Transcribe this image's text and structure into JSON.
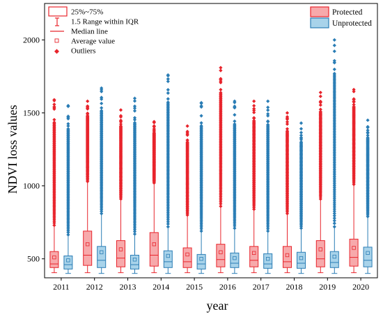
{
  "chart_data": {
    "type": "box",
    "title": "",
    "xlabel": "year",
    "ylabel": "NDVI loss values",
    "ylim": [
      370,
      2250
    ],
    "yticks": [
      500,
      1000,
      1500,
      2000
    ],
    "categories": [
      "2011",
      "2012",
      "2013",
      "2014",
      "2015",
      "2016",
      "2017",
      "2018",
      "2019",
      "2020"
    ],
    "colors": {
      "protected_edge": "#e8242c",
      "protected_fill": "#f7a9ab",
      "unprotected_edge": "#2a7db5",
      "unprotected_fill": "#a8d3ea"
    },
    "box_legend": {
      "iqr": "25%~75%",
      "whisker": "1.5 Range within IQR",
      "median": "Median line",
      "mean": "Average value",
      "outliers": "Outliers"
    },
    "series": [
      {
        "name": "Protected",
        "q1": [
          440,
          455,
          445,
          450,
          440,
          445,
          445,
          440,
          445,
          450
        ],
        "median": [
          465,
          525,
          505,
          525,
          480,
          495,
          490,
          480,
          500,
          510
        ],
        "q3": [
          550,
          690,
          625,
          680,
          575,
          600,
          585,
          585,
          625,
          635
        ],
        "whisker_low": [
          405,
          405,
          405,
          405,
          405,
          405,
          405,
          405,
          405,
          405
        ],
        "whisker_high": [
          730,
          1030,
          910,
          1020,
          800,
          860,
          840,
          810,
          910,
          1010
        ],
        "mean": [
          510,
          600,
          565,
          600,
          530,
          545,
          540,
          525,
          565,
          575
        ],
        "outlier_max": [
          1590,
          1580,
          1520,
          1440,
          1410,
          1810,
          1580,
          1500,
          1640,
          1660
        ]
      },
      {
        "name": "Unprotected",
        "q1": [
          430,
          440,
          430,
          440,
          430,
          440,
          435,
          435,
          440,
          445
        ],
        "median": [
          460,
          490,
          460,
          480,
          465,
          470,
          465,
          470,
          475,
          490
        ],
        "q3": [
          520,
          585,
          525,
          555,
          530,
          540,
          535,
          545,
          550,
          580
        ],
        "whisker_low": [
          400,
          400,
          400,
          400,
          400,
          400,
          400,
          400,
          400,
          400
        ],
        "whisker_high": [
          665,
          810,
          670,
          720,
          690,
          710,
          690,
          710,
          720,
          790
        ],
        "mean": [
          490,
          545,
          495,
          520,
          500,
          505,
          500,
          505,
          515,
          540
        ],
        "outlier_max": [
          1550,
          1670,
          1600,
          1760,
          1570,
          1580,
          1580,
          1430,
          2000,
          1450
        ]
      }
    ]
  }
}
